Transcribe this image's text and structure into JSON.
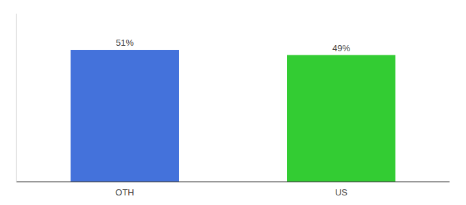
{
  "chart_data": {
    "type": "bar",
    "categories": [
      "OTH",
      "US"
    ],
    "values": [
      51,
      49
    ],
    "value_labels": [
      "51%",
      "49%"
    ],
    "colors": [
      "#4472db",
      "#33cc33"
    ],
    "ylim": [
      0,
      65
    ],
    "data_labels": true,
    "tick_labels": "x"
  }
}
